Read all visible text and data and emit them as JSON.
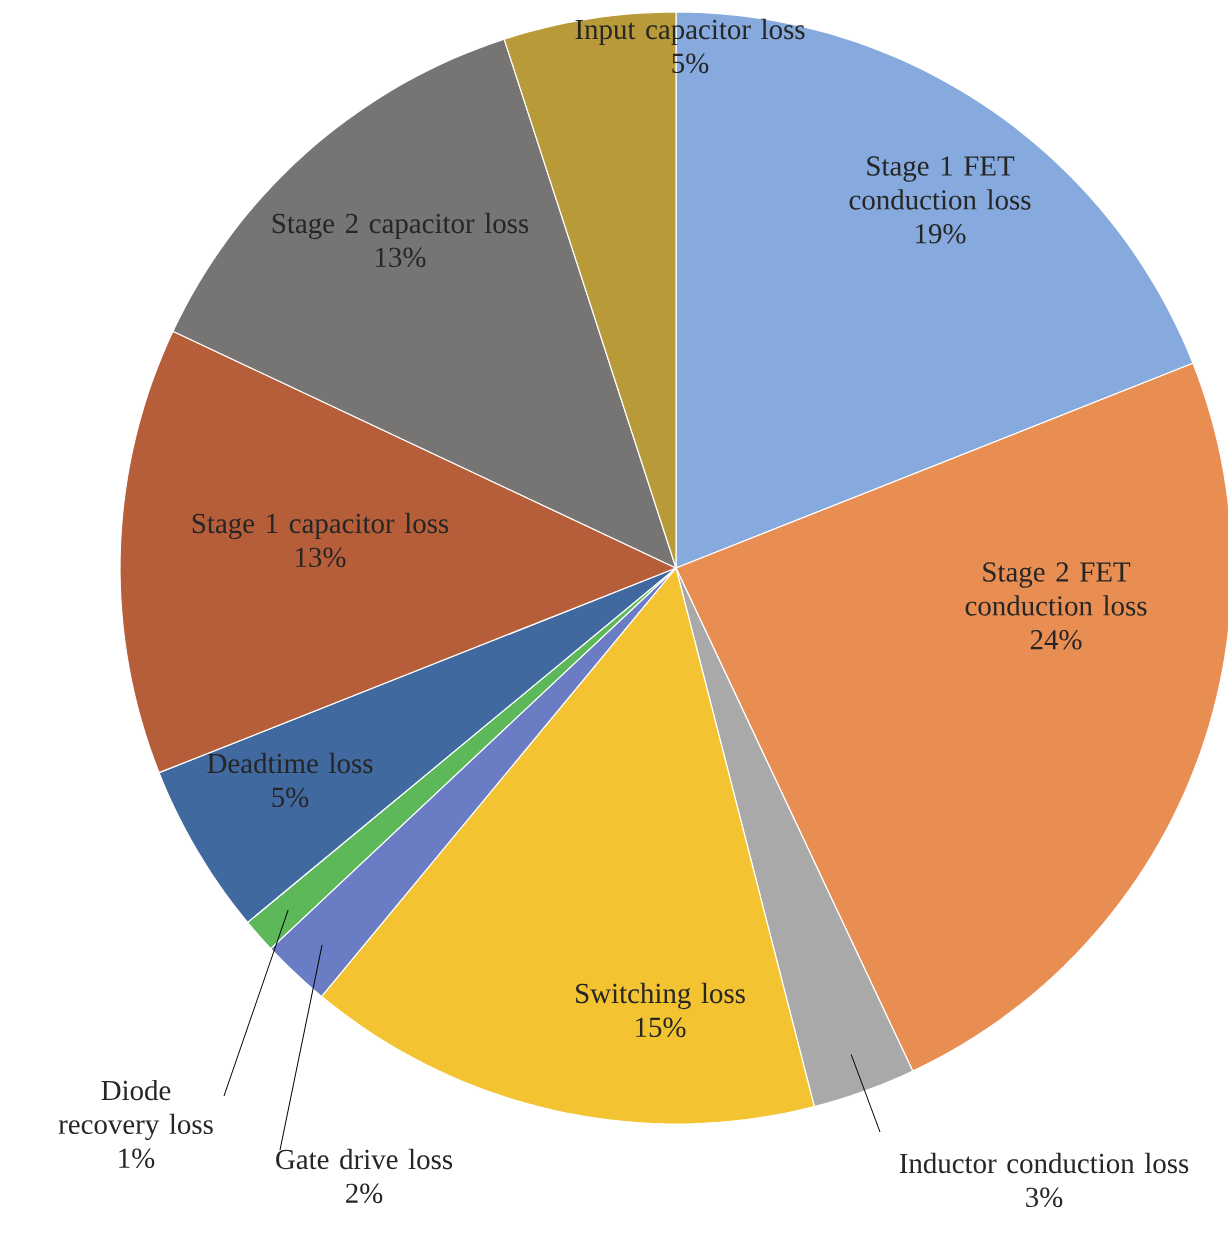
{
  "chart_data": {
    "type": "pie",
    "categories": [
      "Stage 1 FET conduction loss",
      "Stage 2 FET conduction loss",
      "Inductor conduction loss",
      "Switching loss",
      "Gate drive loss",
      "Diode recovery loss",
      "Deadtime loss",
      "Stage 1 capacitor loss",
      "Stage 2 capacitor loss",
      "Input capacitor loss"
    ],
    "values": [
      19,
      24,
      3,
      15,
      2,
      1,
      5,
      13,
      13,
      5
    ],
    "value_labels": [
      "19%",
      "24%",
      "3%",
      "15%",
      "2%",
      "1%",
      "5%",
      "13%",
      "13%",
      "5%"
    ],
    "colors": [
      "#86aadd",
      "#e88e52",
      "#a9a9a9",
      "#f3c331",
      "#6a7cc4",
      "#5db85a",
      "#40699f",
      "#b65e3a",
      "#777573",
      "#b99a38"
    ]
  }
}
